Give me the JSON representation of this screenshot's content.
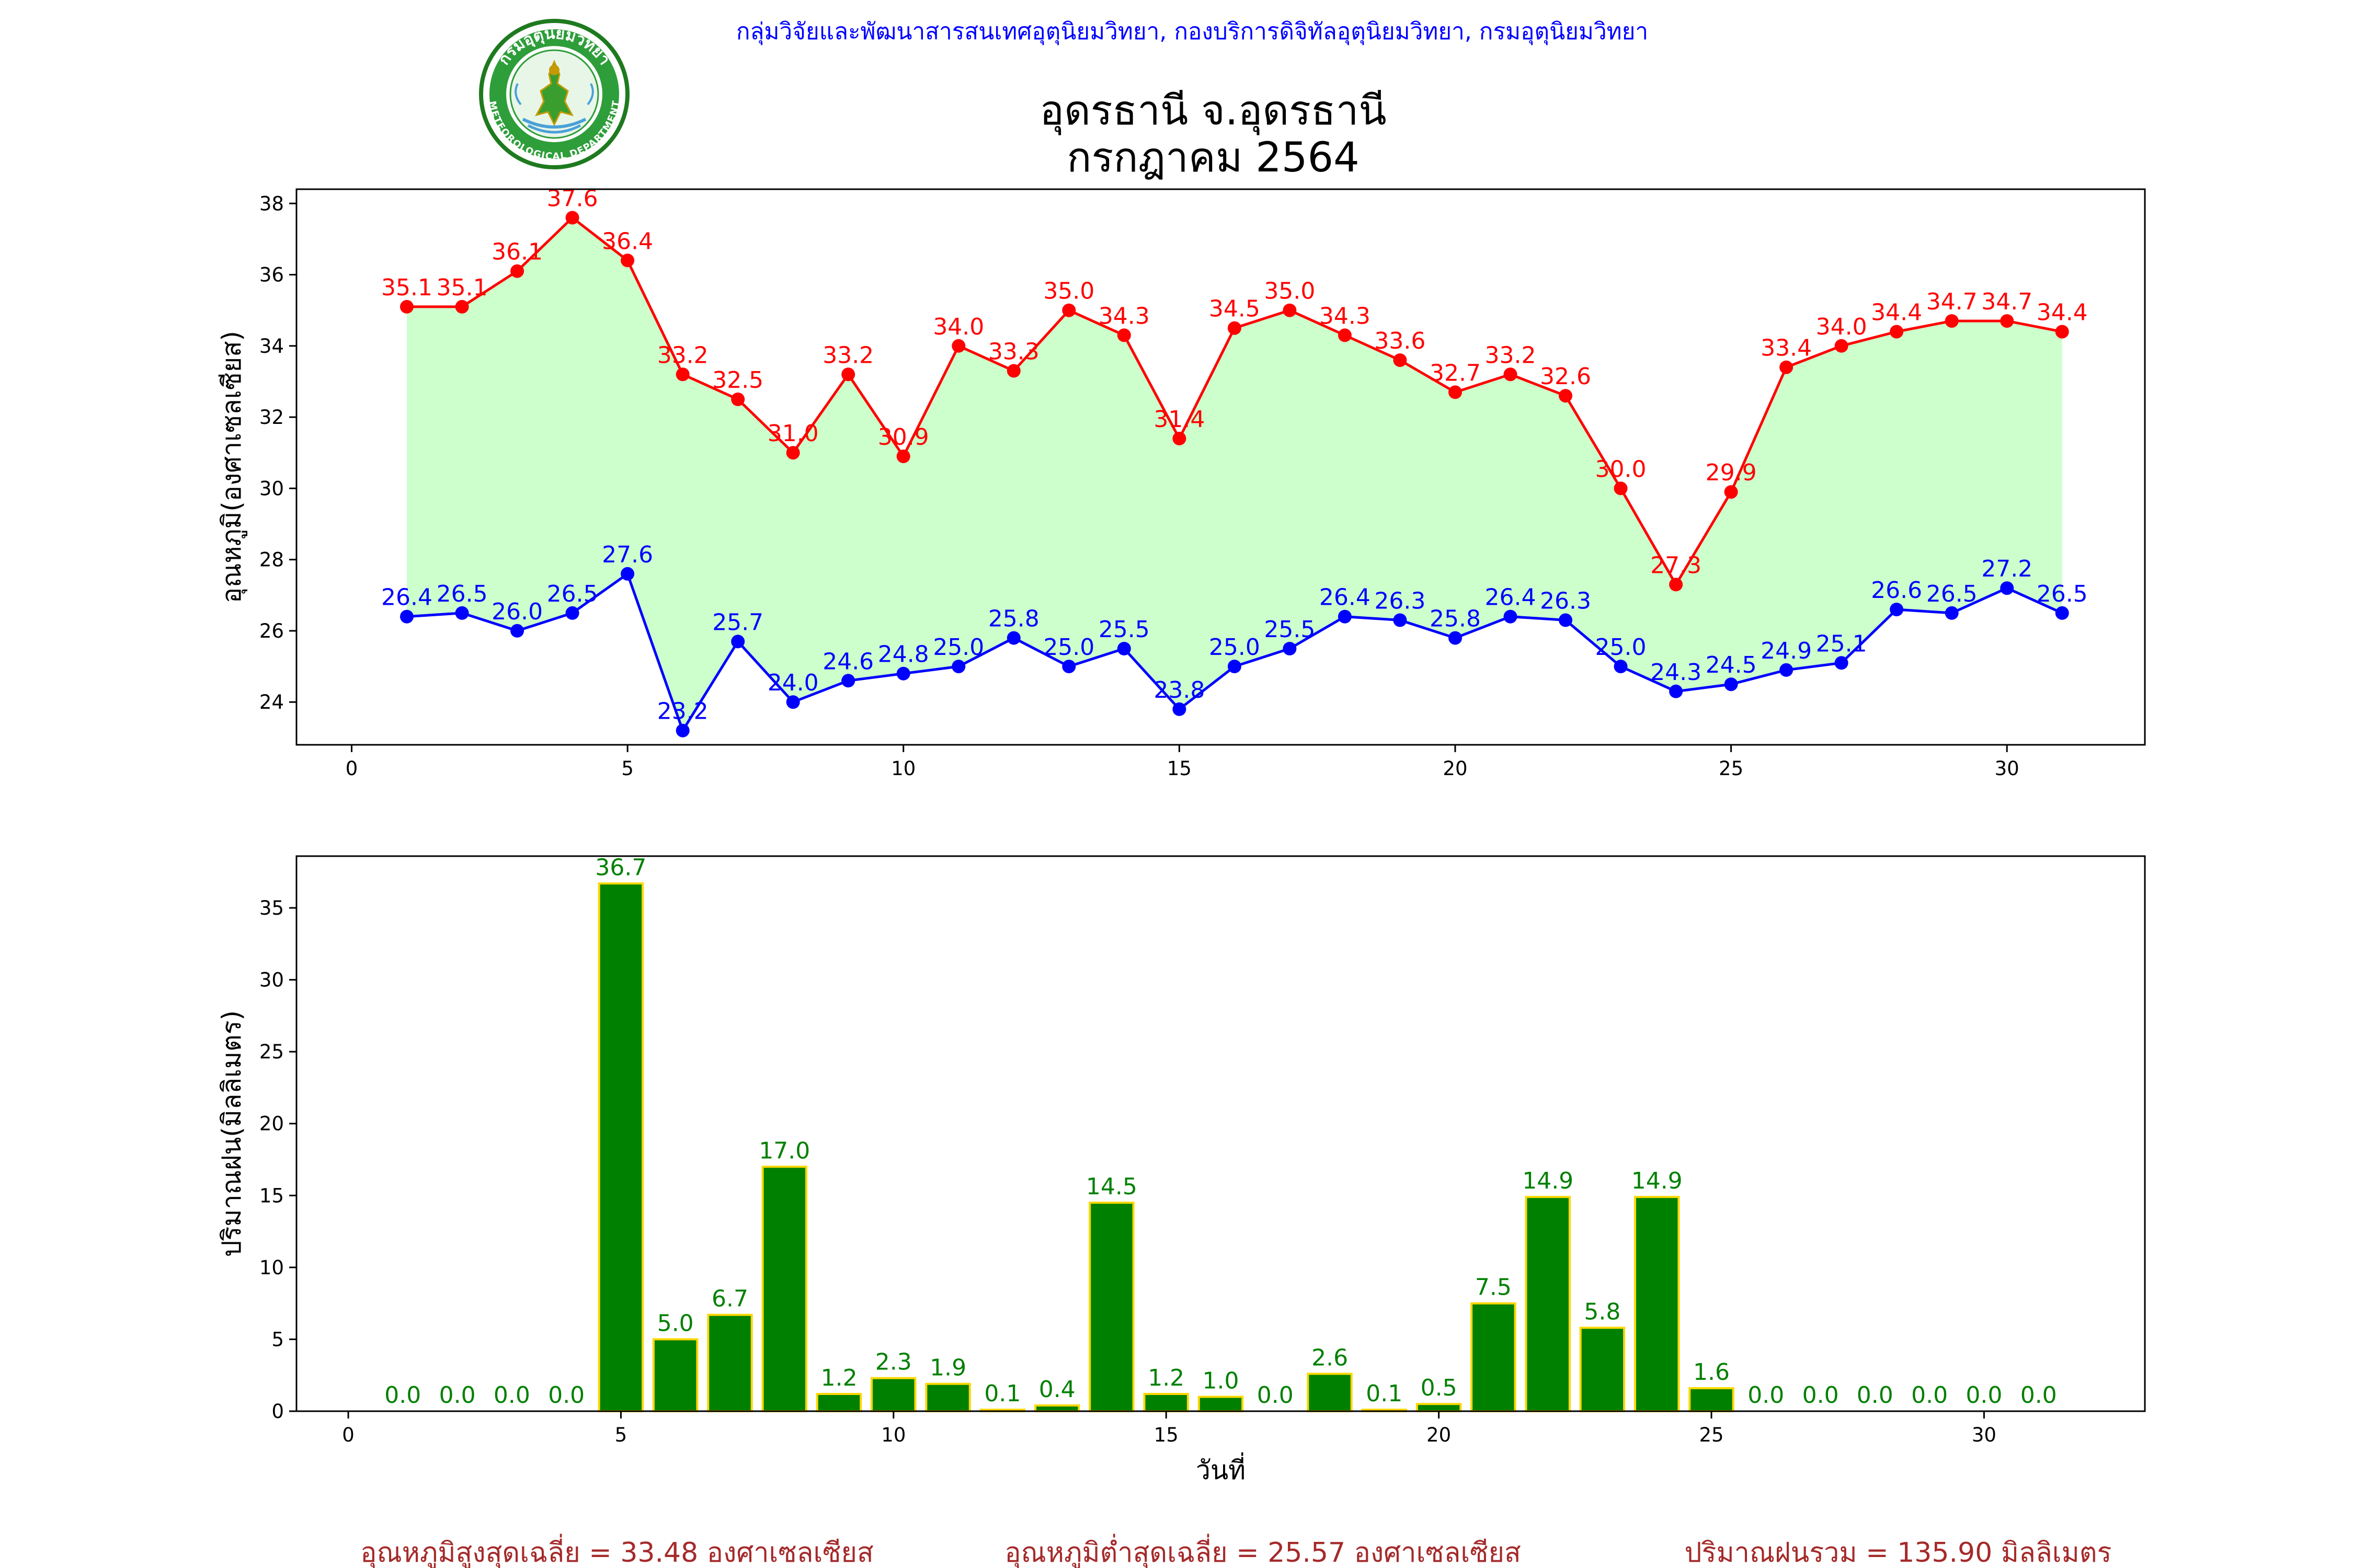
{
  "header": {
    "org_text": "กลุ่มวิจัยและพัฒนาสารสนเทศอุตุนิยมวิทยา, กองบริการดิจิทัลอุตุนิยมวิทยา, กรมอุตุนิยมวิทยา",
    "logo_icon": "meteorological-department-seal",
    "logo_text_top": "กรมอุตุนิยมวิทยา",
    "logo_text_bottom": "METEOROLOGICAL DEPARTMENT"
  },
  "title_line1": "อุดรธานี จ.อุดรธานี",
  "title_line2": "กรกฎาคม 2564",
  "summary": {
    "max_avg": "อุณหภูมิสูงสุดเฉลี่ย = 33.48 องศาเซลเซียส",
    "min_avg": "อุณหภูมิต่ำสุดเฉลี่ย = 25.57 องศาเซลเซียส",
    "rain_total": "ปริมาณฝนรวม = 135.90 มิลลิเมตร"
  },
  "colors": {
    "max_line": "#ff0000",
    "min_line": "#0000ff",
    "fill": "#ccffcc",
    "bar_fill": "#008000",
    "bar_edge": "#ffd700",
    "bar_label": "#008000",
    "summary": "#a52a2a",
    "header": "#0000ff"
  },
  "chart_data": [
    {
      "type": "line",
      "ylabel": "อุณหภูมิ(องศาเซลเซียส)",
      "xlim": [
        -1,
        32.5
      ],
      "ylim": [
        22.8,
        38.4
      ],
      "xticks": [
        0,
        5,
        10,
        15,
        20,
        25,
        30
      ],
      "yticks": [
        24,
        26,
        28,
        30,
        32,
        34,
        36,
        38
      ],
      "fill_between": true,
      "grid": false,
      "x": [
        1,
        2,
        3,
        4,
        5,
        6,
        7,
        8,
        9,
        10,
        11,
        12,
        13,
        14,
        15,
        16,
        17,
        18,
        19,
        20,
        21,
        22,
        23,
        24,
        25,
        26,
        27,
        28,
        29,
        30,
        31
      ],
      "series": [
        {
          "values": [
            35.1,
            35.1,
            36.1,
            37.6,
            36.4,
            33.2,
            32.5,
            31.0,
            33.2,
            30.9,
            34.0,
            33.3,
            35.0,
            34.3,
            31.4,
            34.5,
            35.0,
            34.3,
            33.6,
            32.7,
            33.2,
            32.6,
            30.0,
            27.3,
            29.9,
            33.4,
            34.0,
            34.4,
            34.7,
            34.7,
            34.4
          ],
          "labels": [
            "35.1",
            "35.1",
            "36.1",
            "37.6",
            "36.4",
            "33.2",
            "32.5",
            "31.0",
            "33.2",
            "30.9",
            "34.0",
            "33.3",
            "35.0",
            "34.3",
            "31.4",
            "34.5",
            "35.0",
            "34.3",
            "33.6",
            "32.7",
            "33.2",
            "32.6",
            "30.0",
            "27.3",
            "29.9",
            "33.4",
            "34.0",
            "34.4",
            "34.7",
            "34.7",
            "34.4"
          ]
        },
        {
          "values": [
            26.4,
            26.5,
            26.0,
            26.5,
            27.6,
            23.2,
            25.7,
            24.0,
            24.6,
            24.8,
            25.0,
            25.8,
            25.0,
            25.5,
            23.8,
            25.0,
            25.5,
            26.4,
            26.3,
            25.8,
            26.4,
            26.3,
            25.0,
            24.3,
            24.5,
            24.9,
            25.1,
            26.6,
            26.5,
            27.2,
            26.5
          ],
          "labels": [
            "26.4",
            "26.5",
            "26.0",
            "26.5",
            "27.6",
            "23.2",
            "25.7",
            "24.0",
            "24.6",
            "24.8",
            "25.0",
            "25.8",
            "25.0",
            "25.5",
            "23.8",
            "25.0",
            "25.5",
            "26.4",
            "26.3",
            "25.8",
            "26.4",
            "26.3",
            "25.0",
            "24.3",
            "24.5",
            "24.9",
            "25.1",
            "26.6",
            "26.5",
            "27.2",
            "26.5"
          ]
        }
      ]
    },
    {
      "type": "bar",
      "ylabel": "ปริมาณฝน(มิลลิเมตร)",
      "xlabel": "วันที่",
      "xlim": [
        -0.95,
        32.95
      ],
      "ylim": [
        0,
        38.6
      ],
      "xticks": [
        0,
        5,
        10,
        15,
        20,
        25,
        30
      ],
      "yticks": [
        0,
        5,
        10,
        15,
        20,
        25,
        30,
        35
      ],
      "grid": false,
      "x": [
        1,
        2,
        3,
        4,
        5,
        6,
        7,
        8,
        9,
        10,
        11,
        12,
        13,
        14,
        15,
        16,
        17,
        18,
        19,
        20,
        21,
        22,
        23,
        24,
        25,
        26,
        27,
        28,
        29,
        30,
        31
      ],
      "values": [
        0.0,
        0.0,
        0.0,
        0.0,
        36.7,
        5.0,
        6.7,
        17.0,
        1.2,
        2.3,
        1.9,
        0.1,
        0.4,
        14.5,
        1.2,
        1.0,
        0.0,
        2.6,
        0.1,
        0.5,
        7.5,
        14.9,
        5.8,
        14.9,
        1.6,
        0.0,
        0.0,
        0.0,
        0.0,
        0.0,
        0.0
      ],
      "labels": [
        "0.0",
        "0.0",
        "0.0",
        "0.0",
        "36.7",
        "5.0",
        "6.7",
        "17.0",
        "1.2",
        "2.3",
        "1.9",
        "0.1",
        "0.4",
        "14.5",
        "1.2",
        "1.0",
        "0.0",
        "2.6",
        "0.1",
        "0.5",
        "7.5",
        "14.9",
        "5.8",
        "14.9",
        "1.6",
        "0.0",
        "0.0",
        "0.0",
        "0.0",
        "0.0",
        "0.0"
      ]
    }
  ]
}
